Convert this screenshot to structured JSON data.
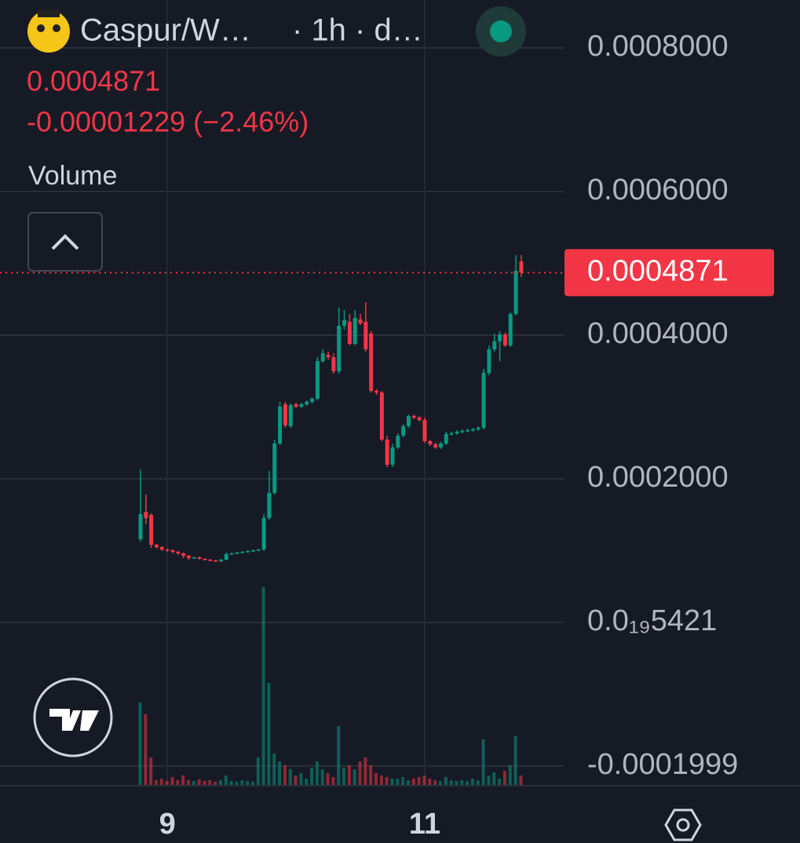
{
  "chart_data": {
    "type": "candlestick",
    "title": "Caspur/W…",
    "interval": "· 1h · d…",
    "last_price": 0.0004871,
    "change": "-0.00001229 (−2.46%)",
    "volume_label": "Volume",
    "up_color": "#089981",
    "down_color": "#f23645",
    "grid": true,
    "ylim": [
      -0.0002262,
      0.0008667
    ],
    "yticks": [
      {
        "value": 0.0008,
        "label": "0.0008000"
      },
      {
        "value": 0.0006,
        "label": "0.0006000"
      },
      {
        "value": 0.0004,
        "label": "0.0004000"
      },
      {
        "value": 0.0002,
        "label": "0.0002000"
      },
      {
        "value": 5.421e-20,
        "label": "0.0₁₉5421"
      },
      -0.0001999
    ],
    "categories": [
      null,
      null,
      null,
      null,
      null,
      "9",
      null,
      null,
      null,
      null,
      null,
      null,
      null,
      null,
      null,
      null,
      null,
      null,
      null,
      null,
      null,
      null,
      null,
      null,
      null,
      null,
      null,
      null,
      null,
      null,
      null,
      null,
      null,
      null,
      null,
      null,
      null,
      null,
      null,
      null,
      null,
      null,
      null,
      null,
      null,
      null,
      null,
      null,
      null,
      null,
      null,
      null,
      null,
      "11",
      null,
      null,
      null,
      null,
      null,
      null,
      null,
      null,
      null,
      null,
      null,
      null,
      null,
      null,
      null,
      null,
      null,
      null
    ],
    "open": [
      0.0001158,
      0.0001541,
      0.0001497,
      0.0001082,
      0.0001049,
      0.0001016,
      0.0001005,
      9.84e-05,
      9.62e-05,
      9.29e-05,
      8.96e-05,
      9.07e-05,
      8.85e-05,
      8.74e-05,
      8.63e-05,
      8.52e-05,
      8.74e-05,
      9.51e-05,
      9.62e-05,
      9.73e-05,
      9.84e-05,
      9.95e-05,
      0.0001005,
      0.0001016,
      0.0001454,
      0.0001803,
      0.0002492,
      0.0003038,
      0.0002732,
      0.0003038,
      0.0003005,
      0.0003038,
      0.0003071,
      0.0003115,
      0.0003639,
      0.0003727,
      0.0003694,
      0.0003497,
      0.0004131,
      0.0004186,
      0.000388,
      0.0004219,
      0.0004186,
      0.0004022,
      0.0003224,
      0.0003202,
      0.0002546,
      0.0002197,
      0.0002437,
      0.0002601,
      0.0002732,
      0.0002874,
      0.0002852,
      0.000282,
      0.0002525,
      0.0002481,
      0.0002437,
      0.0002492,
      0.0002623,
      0.0002634,
      0.0002656,
      0.0002667,
      0.0002678,
      0.0002689,
      0.000271,
      0.0003475,
      0.0003803,
      0.0003913,
      0.0004011,
      0.0003858,
      0.0004295,
      0.0005027
    ],
    "high": [
      0.0002131,
      0.0001781,
      0.0001519,
      0.0001093,
      0.000106,
      0.0001027,
      0.0001016,
      9.95e-05,
      9.73e-05,
      9.4e-05,
      9.18e-05,
      9.18e-05,
      8.96e-05,
      8.85e-05,
      8.74e-05,
      8.85e-05,
      9.73e-05,
      9.73e-05,
      9.84e-05,
      9.95e-05,
      0.0001005,
      0.0001016,
      0.0001027,
      0.0001508,
      0.0002109,
      0.0002546,
      0.0003071,
      0.0003071,
      0.0003049,
      0.000306,
      0.000306,
      0.0003093,
      0.0003137,
      0.0003694,
      0.0003803,
      0.0003771,
      0.0003749,
      0.0004383,
      0.000435,
      0.0004295,
      0.000435,
      0.0004295,
      0.0004459,
      0.0004055,
      0.0003246,
      0.0003224,
      0.0002601,
      0.0002492,
      0.0002634,
      0.0002765,
      0.0002896,
      0.0002896,
      0.0002874,
      0.0002852,
      0.0002546,
      0.0002503,
      0.0002514,
      0.0002656,
      0.0002656,
      0.0002678,
      0.0002689,
      0.0002699,
      0.000271,
      0.0002732,
      0.000353,
      0.0003858,
      0.0004022,
      0.0004055,
      0.0004033,
      0.0004317,
      0.0005115,
      0.0005115
    ],
    "low": [
      0.0001126,
      0.0001366,
      0.0001038,
      0.0001027,
      9.95e-05,
      9.84e-05,
      9.62e-05,
      9.4e-05,
      8.96e-05,
      8.74e-05,
      8.85e-05,
      8.74e-05,
      8.63e-05,
      8.52e-05,
      8.42e-05,
      8.42e-05,
      8.63e-05,
      9.4e-05,
      9.51e-05,
      9.62e-05,
      9.73e-05,
      9.84e-05,
      9.95e-05,
      9.95e-05,
      0.0001432,
      0.0001781,
      0.000247,
      0.000271,
      0.000271,
      0.0002984,
      0.0002984,
      0.0003016,
      0.0003049,
      0.0003093,
      0.0003617,
      0.0003661,
      0.0003464,
      0.0003464,
      0.0004077,
      0.0003858,
      0.0003858,
      0.0004142,
      0.0003771,
      0.0003202,
      0.0003169,
      0.0002525,
      0.0002164,
      0.0002164,
      0.0002415,
      0.0002579,
      0.000271,
      0.0002831,
      0.0002798,
      0.0002503,
      0.0002459,
      0.0002415,
      0.0002415,
      0.000247,
      0.0002601,
      0.0002612,
      0.0002634,
      0.0002645,
      0.0002656,
      0.0002667,
      0.0002689,
      0.0003443,
      0.0003771,
      0.0003639,
      0.0003836,
      0.0003836,
      0.0004273,
      0.0004809
    ],
    "close": [
      0.0001508,
      0.0001454,
      0.0001082,
      0.0001049,
      0.0001016,
      0.0001005,
      9.84e-05,
      9.62e-05,
      9.29e-05,
      8.96e-05,
      9.07e-05,
      8.85e-05,
      8.74e-05,
      8.63e-05,
      8.52e-05,
      8.74e-05,
      9.51e-05,
      9.62e-05,
      9.73e-05,
      9.84e-05,
      9.95e-05,
      0.0001005,
      0.0001016,
      0.0001454,
      0.0001803,
      0.0002492,
      0.0003005,
      0.0002743,
      0.0003027,
      0.0003005,
      0.0003038,
      0.0003071,
      0.0003115,
      0.0003639,
      0.0003749,
      0.0003694,
      0.0003497,
      0.0004131,
      0.0004208,
      0.000388,
      0.000424,
      0.0004164,
      0.0003803,
      0.0003224,
      0.0003202,
      0.0002546,
      0.0002197,
      0.0002437,
      0.0002601,
      0.0002732,
      0.0002874,
      0.0002852,
      0.000282,
      0.0002525,
      0.0002481,
      0.0002437,
      0.0002492,
      0.0002623,
      0.0002634,
      0.0002656,
      0.0002667,
      0.0002678,
      0.0002689,
      0.000271,
      0.0003475,
      0.0003803,
      0.0003913,
      0.0004011,
      0.0003858,
      0.0004295,
      0.0004896,
      0.0004871
    ],
    "volume": [
      105,
      90,
      35,
      6,
      8,
      5,
      10,
      6,
      12,
      6,
      5,
      7,
      5,
      6,
      4,
      6,
      12,
      5,
      4,
      6,
      5,
      4,
      35,
      252,
      130,
      40,
      30,
      25,
      20,
      12,
      15,
      8,
      22,
      30,
      20,
      15,
      10,
      75,
      22,
      25,
      20,
      30,
      35,
      25,
      15,
      12,
      10,
      8,
      8,
      10,
      6,
      8,
      10,
      12,
      8,
      6,
      5,
      10,
      6,
      5,
      6,
      5,
      8,
      6,
      58,
      12,
      16,
      8,
      18,
      25,
      62,
      12
    ]
  }
}
